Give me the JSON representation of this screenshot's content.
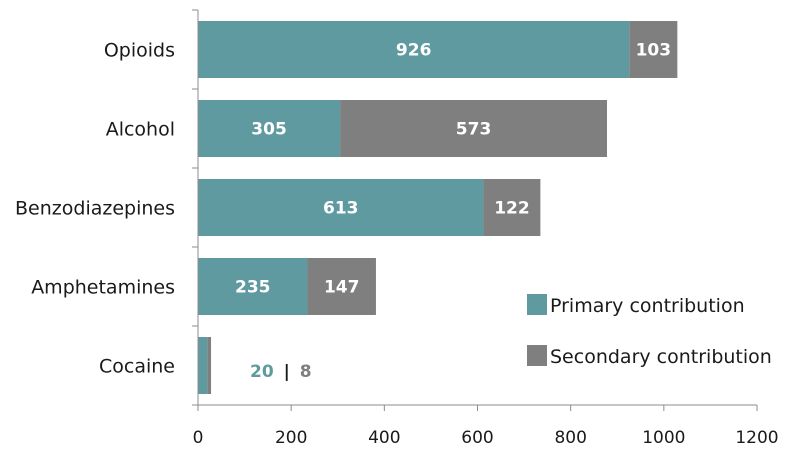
{
  "chart_data": {
    "type": "bar",
    "orientation": "horizontal",
    "stacked": true,
    "categories": [
      "Opioids",
      "Alcohol",
      "Benzodiazepines",
      "Amphetamines",
      "Cocaine"
    ],
    "series": [
      {
        "name": "Primary contribution",
        "values": [
          926,
          305,
          613,
          235,
          20
        ],
        "color": "#5f9aa0"
      },
      {
        "name": "Secondary contribution",
        "values": [
          103,
          573,
          122,
          147,
          8
        ],
        "color": "#7f7f7f"
      }
    ],
    "xlim": [
      0,
      1200
    ],
    "xticks": [
      "0",
      "200",
      "400",
      "600",
      "800",
      "1000",
      "1200"
    ],
    "legend_position": "bottom-right",
    "grid": false,
    "annotation": {
      "primary": "20",
      "separator": "|",
      "secondary": "8"
    }
  }
}
